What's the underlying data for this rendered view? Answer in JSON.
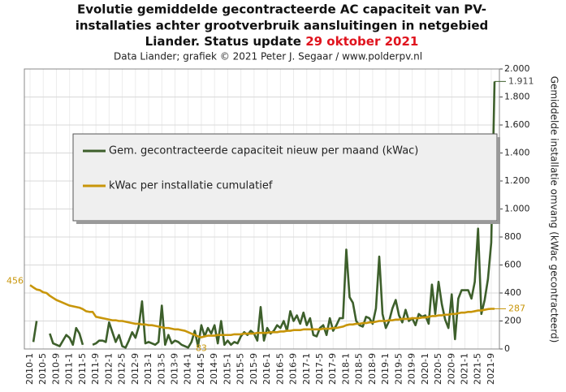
{
  "chart_data": {
    "type": "line",
    "title": [
      "Evolutie gemiddelde gecontracteerde AC capaciteit van PV-",
      "installaties achter grootverbruik aansluitingen in netgebied",
      "Liander. Status update "
    ],
    "title_highlight": "29 oktober 2021",
    "subtitle": "Data Liander; grafiek © 2021 Peter J. Segaar / www.polderpv.nl",
    "y_axis_label": "Gemiddelde installatie omvang (kWac gecontracteerd)",
    "ylim": [
      0,
      2000
    ],
    "yticks": [
      0,
      200,
      400,
      600,
      800,
      {
        "value": 1000,
        "label": "1.000"
      },
      {
        "value": 1200,
        "label": "1.200"
      },
      {
        "value": 1400,
        "label": "1.400"
      },
      {
        "value": 1600,
        "label": "1.600"
      },
      {
        "value": 1800,
        "label": "1.800"
      },
      {
        "value": 2000,
        "label": "2.000"
      }
    ],
    "grid": true,
    "categories": [
      "2010-1",
      null,
      null,
      null,
      "2010-5",
      null,
      null,
      null,
      "2010-9",
      null,
      null,
      null,
      "2011-1",
      null,
      null,
      null,
      "2011-5",
      null,
      null,
      null,
      "2011-9",
      null,
      null,
      null,
      "2012-1",
      null,
      null,
      null,
      "2012-5",
      null,
      null,
      null,
      "2012-9",
      null,
      null,
      null,
      "2013-1",
      null,
      null,
      null,
      "2013-5",
      null,
      null,
      null,
      "2013-9",
      null,
      null,
      null,
      "2014-1",
      null,
      null,
      null,
      "2014-5",
      null,
      null,
      null,
      "2014-9",
      null,
      null,
      null,
      "2015-1",
      null,
      null,
      null,
      "2015-5",
      null,
      null,
      null,
      "2015-9",
      null,
      null,
      null,
      "2016-1",
      null,
      null,
      null,
      "2016-5",
      null,
      null,
      null,
      "2016-9",
      null,
      null,
      null,
      "2017-1",
      null,
      null,
      null,
      "2017-5",
      null,
      null,
      null,
      "2017-9",
      null,
      null,
      null,
      "2018-1",
      null,
      null,
      null,
      "2018-5",
      null,
      null,
      null,
      "2018-9",
      null,
      null,
      null,
      "2019-1",
      null,
      null,
      null,
      "2019-5",
      null,
      null,
      null,
      "2019-9",
      null,
      null,
      null,
      "2020-1",
      null,
      null,
      null,
      "2020-5",
      null,
      null,
      null,
      "2020-9",
      null,
      null,
      null,
      "2021-1",
      null,
      null,
      null,
      "2021-5",
      null,
      null,
      null,
      "2021-9",
      null
    ],
    "series": [
      {
        "name": "Gem. gecontracteerde capaciteit nieuw per maand (kWac)",
        "color": "#3d5f2b",
        "values": [
          null,
          50,
          200,
          null,
          null,
          null,
          110,
          40,
          30,
          20,
          60,
          100,
          80,
          30,
          150,
          110,
          30,
          null,
          null,
          30,
          40,
          60,
          60,
          50,
          190,
          120,
          50,
          100,
          20,
          10,
          60,
          120,
          80,
          160,
          340,
          40,
          50,
          40,
          30,
          50,
          310,
          30,
          100,
          40,
          60,
          50,
          30,
          20,
          10,
          50,
          130,
          20,
          170,
          90,
          150,
          110,
          170,
          40,
          200,
          30,
          60,
          30,
          50,
          40,
          90,
          120,
          100,
          130,
          110,
          60,
          300,
          60,
          150,
          110,
          130,
          170,
          150,
          200,
          130,
          270,
          200,
          240,
          180,
          260,
          170,
          220,
          100,
          90,
          150,
          170,
          100,
          220,
          130,
          170,
          220,
          220,
          710,
          370,
          330,
          200,
          170,
          160,
          230,
          220,
          180,
          290,
          660,
          250,
          150,
          200,
          290,
          350,
          240,
          190,
          280,
          200,
          220,
          170,
          250,
          230,
          240,
          180,
          460,
          250,
          480,
          320,
          210,
          150,
          390,
          70,
          360,
          420,
          420,
          420,
          360,
          480,
          860,
          250,
          350,
          500,
          760,
          1911
        ],
        "value_labels": [
          null,
          null,
          null,
          null,
          null,
          null,
          null,
          null,
          null,
          null,
          null,
          null,
          null,
          null,
          null,
          null,
          null,
          null,
          null,
          null,
          null,
          null,
          null,
          null,
          null,
          null,
          null,
          null,
          null,
          null,
          null,
          null,
          null,
          null,
          null,
          null,
          null,
          null,
          null,
          null,
          null,
          null,
          null,
          null,
          null,
          null,
          null,
          null,
          null,
          null,
          null,
          null,
          null,
          null,
          null,
          null,
          null,
          null,
          null,
          null,
          null,
          null,
          null,
          null,
          null,
          null,
          null,
          null,
          null,
          null,
          null,
          null,
          null,
          null,
          null,
          null,
          null,
          null,
          null,
          null,
          null,
          null,
          null,
          null,
          null,
          null,
          null,
          null,
          null,
          null,
          null,
          null,
          null,
          null,
          null,
          null,
          null,
          null,
          null,
          null,
          null,
          null,
          null,
          null,
          null,
          null,
          null,
          null,
          null,
          null,
          null,
          null,
          null,
          null,
          null,
          null,
          null,
          null,
          null,
          null,
          null,
          null,
          null,
          null,
          null,
          null,
          null,
          null,
          null,
          null,
          null,
          null,
          null,
          null,
          null,
          null,
          null,
          null,
          null,
          null,
          null,
          "1.911"
        ]
      },
      {
        "name": "kWac per installatie cumulatief",
        "color": "#c8960a",
        "values": [
          456,
          440,
          425,
          420,
          405,
          400,
          380,
          365,
          350,
          340,
          330,
          320,
          310,
          305,
          300,
          295,
          285,
          270,
          265,
          265,
          230,
          225,
          220,
          215,
          210,
          205,
          205,
          200,
          200,
          195,
          190,
          185,
          180,
          180,
          175,
          175,
          170,
          170,
          165,
          160,
          155,
          150,
          150,
          145,
          140,
          140,
          135,
          130,
          120,
          110,
          100,
          90,
          83,
          90,
          95,
          95,
          95,
          100,
          100,
          100,
          100,
          100,
          105,
          105,
          105,
          110,
          110,
          110,
          110,
          115,
          115,
          115,
          115,
          120,
          120,
          120,
          125,
          125,
          130,
          130,
          135,
          135,
          135,
          140,
          140,
          140,
          140,
          140,
          140,
          145,
          145,
          145,
          150,
          150,
          155,
          160,
          170,
          175,
          175,
          180,
          180,
          185,
          185,
          190,
          190,
          195,
          200,
          200,
          200,
          205,
          205,
          210,
          210,
          215,
          215,
          215,
          220,
          220,
          220,
          225,
          225,
          230,
          235,
          235,
          240,
          240,
          245,
          245,
          250,
          250,
          255,
          260,
          260,
          265,
          265,
          270,
          275,
          275,
          280,
          285,
          287,
          287
        ],
        "value_labels": [
          "456",
          null,
          null,
          null,
          null,
          null,
          null,
          null,
          null,
          null,
          null,
          null,
          null,
          null,
          null,
          null,
          null,
          null,
          null,
          null,
          null,
          null,
          null,
          null,
          null,
          null,
          null,
          null,
          null,
          null,
          null,
          null,
          null,
          null,
          null,
          null,
          null,
          null,
          null,
          null,
          null,
          null,
          null,
          null,
          null,
          null,
          null,
          null,
          null,
          null,
          null,
          null,
          "83",
          null,
          null,
          null,
          null,
          null,
          null,
          null,
          null,
          null,
          null,
          null,
          null,
          null,
          null,
          null,
          null,
          null,
          null,
          null,
          null,
          null,
          null,
          null,
          null,
          null,
          null,
          null,
          null,
          null,
          null,
          null,
          null,
          null,
          null,
          null,
          null,
          null,
          null,
          null,
          null,
          null,
          null,
          null,
          null,
          null,
          null,
          null,
          null,
          null,
          null,
          null,
          null,
          null,
          null,
          null,
          null,
          null,
          null,
          null,
          null,
          null,
          null,
          null,
          null,
          null,
          null,
          null,
          null,
          null,
          null,
          null,
          null,
          null,
          null,
          null,
          null,
          null,
          null,
          null,
          null,
          null,
          null,
          null,
          null,
          null,
          null,
          null,
          null,
          "287"
        ]
      }
    ]
  }
}
